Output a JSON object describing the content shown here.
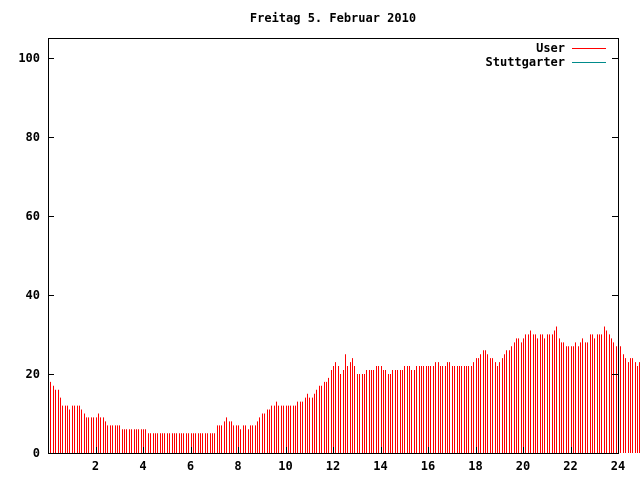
{
  "chart_data": {
    "type": "bar",
    "title": "Freitag 5. Februar 2010",
    "xlabel": "",
    "ylabel": "",
    "xlim": [
      0,
      24
    ],
    "ylim": [
      0,
      105
    ],
    "x_ticks": [
      "2",
      "4",
      "6",
      "8",
      "10",
      "12",
      "14",
      "16",
      "18",
      "20",
      "22",
      "24"
    ],
    "y_ticks": [
      "0",
      "20",
      "40",
      "60",
      "80",
      "100"
    ],
    "legend_position": "top-right",
    "grid": false,
    "series": [
      {
        "name": "User",
        "color": "#ff0000",
        "sample_interval_hours": 0.1,
        "values": [
          18,
          17,
          16,
          16,
          14,
          12,
          12,
          12,
          11,
          12,
          12,
          12,
          12,
          11,
          10,
          9,
          9,
          9,
          9,
          9,
          10,
          9,
          9,
          8,
          7,
          7,
          7,
          7,
          7,
          7,
          6,
          6,
          6,
          6,
          6,
          6,
          6,
          6,
          6,
          6,
          6,
          5,
          5,
          5,
          5,
          5,
          5,
          5,
          5,
          5,
          5,
          5,
          5,
          5,
          5,
          5,
          5,
          5,
          5,
          5,
          5,
          5,
          5,
          5,
          5,
          5,
          5,
          5,
          5,
          5,
          7,
          7,
          7,
          8,
          9,
          8,
          8,
          7,
          7,
          7,
          6,
          7,
          7,
          6,
          7,
          7,
          7,
          8,
          9,
          10,
          10,
          11,
          11,
          12,
          12,
          13,
          12,
          12,
          12,
          12,
          12,
          12,
          12,
          12,
          13,
          13,
          13,
          14,
          15,
          14,
          14,
          15,
          16,
          17,
          17,
          18,
          18,
          19,
          21,
          22,
          23,
          22,
          20,
          21,
          25,
          22,
          23,
          24,
          22,
          20,
          20,
          20,
          20,
          21,
          21,
          21,
          21,
          22,
          22,
          22,
          21,
          21,
          20,
          20,
          21,
          21,
          21,
          21,
          21,
          22,
          22,
          22,
          21,
          21,
          22,
          22,
          22,
          22,
          22,
          22,
          22,
          22,
          23,
          23,
          22,
          22,
          22,
          23,
          23,
          22,
          22,
          22,
          22,
          22,
          22,
          22,
          22,
          22,
          23,
          24,
          24,
          25,
          26,
          26,
          25,
          24,
          24,
          23,
          22,
          23,
          24,
          25,
          26,
          26,
          27,
          28,
          29,
          29,
          28,
          29,
          30,
          30,
          31,
          30,
          30,
          29,
          30,
          30,
          29,
          30,
          30,
          30,
          31,
          32,
          29,
          28,
          28,
          27,
          27,
          27,
          27,
          28,
          27,
          28,
          29,
          28,
          28,
          30,
          30,
          29,
          30,
          30,
          30,
          32,
          31,
          30,
          29,
          28,
          27,
          27,
          27,
          25,
          24,
          23,
          24,
          24,
          23,
          22,
          23,
          23,
          23
        ]
      },
      {
        "name": "Stuttgarter",
        "color": "#008b8b",
        "values": []
      }
    ]
  }
}
